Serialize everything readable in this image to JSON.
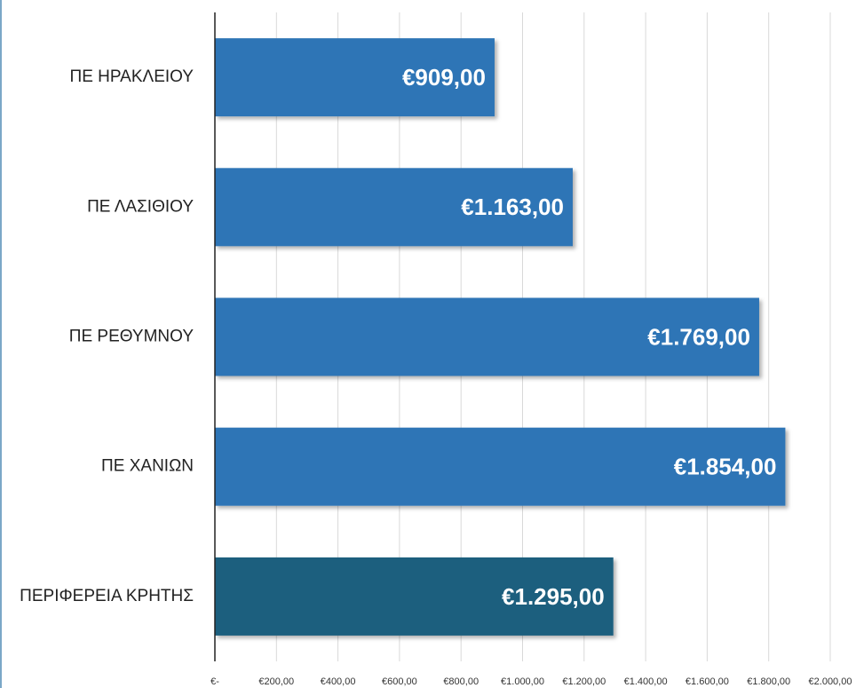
{
  "chart_data": {
    "type": "bar",
    "orientation": "horizontal",
    "categories": [
      "ΠΕ ΗΡΑΚΛΕΙΟΥ",
      "ΠΕ ΛΑΣΙΘΙΟΥ",
      "ΠΕ ΡΕΘΥΜΝΟΥ",
      "ΠΕ ΧΑΝΙΩΝ",
      "ΠΕΡΙΦΕΡΕΙΑ ΚΡΗΤΗΣ"
    ],
    "values": [
      909,
      1163,
      1769,
      1854,
      1295
    ],
    "value_labels": [
      "€909,00",
      "€1.163,00",
      "€1.769,00",
      "€1.854,00",
      "€1.295,00"
    ],
    "colors": [
      "#2e75b6",
      "#2e75b6",
      "#2e75b6",
      "#2e75b6",
      "#1b5e7e"
    ],
    "xlim": [
      0,
      2000
    ],
    "xticks": [
      {
        "value": 0,
        "label": "€-"
      },
      {
        "value": 200,
        "label": "€200,00"
      },
      {
        "value": 400,
        "label": "€400,00"
      },
      {
        "value": 600,
        "label": "€600,00"
      },
      {
        "value": 800,
        "label": "€800,00"
      },
      {
        "value": 1000,
        "label": "€1.000,00"
      },
      {
        "value": 1200,
        "label": "€1.200,00"
      },
      {
        "value": 1400,
        "label": "€1.400,00"
      },
      {
        "value": 1600,
        "label": "€1.600,00"
      },
      {
        "value": 1800,
        "label": "€1.800,00"
      },
      {
        "value": 2000,
        "label": "€2.000,00"
      }
    ],
    "grid": true
  }
}
